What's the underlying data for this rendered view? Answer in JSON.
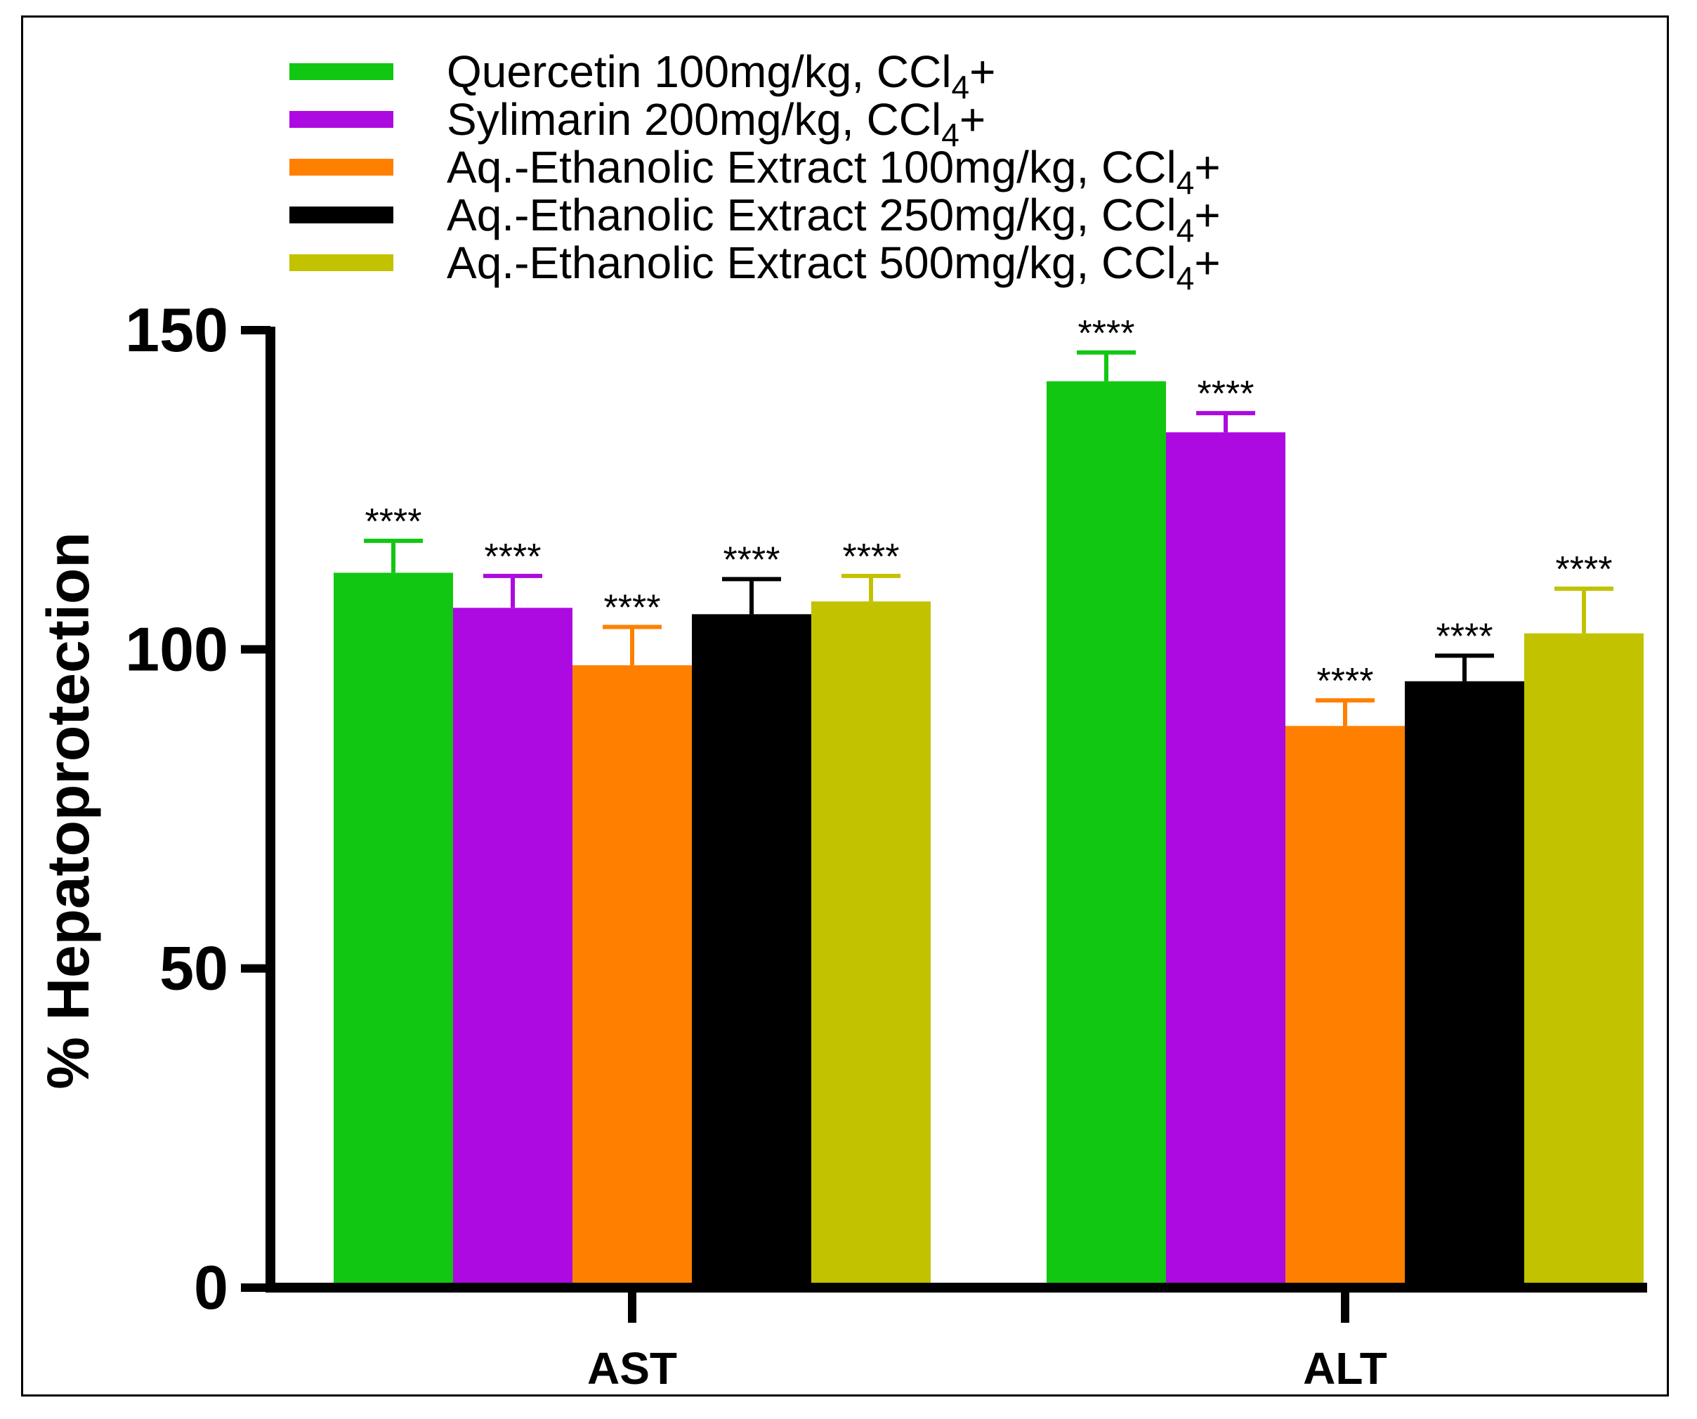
{
  "chart_data": {
    "type": "bar",
    "categories": [
      "AST",
      "ALT"
    ],
    "ylabel": "% Hepatoprotection",
    "ylim": [
      0,
      150
    ],
    "yticks": [
      0,
      50,
      100,
      150
    ],
    "legend_position": "top",
    "series": [
      {
        "name_main": "Quercetin 100mg/kg, CCl",
        "name_sub": "4",
        "name_end": "+",
        "color": "#12c712",
        "values": [
          112,
          142
        ],
        "errors": [
          5,
          4.5
        ],
        "sig": [
          "****",
          "****"
        ]
      },
      {
        "name_main": "Sylimarin 200mg/kg, CCl",
        "name_sub": "4",
        "name_end": "+",
        "color": "#ac0ae0",
        "values": [
          106.5,
          134
        ],
        "errors": [
          5,
          3
        ],
        "sig": [
          "****",
          "****"
        ]
      },
      {
        "name_main": "Aq.-Ethanolic Extract 100mg/kg, CCl",
        "name_sub": "4",
        "name_end": "+",
        "color": "#ff8000",
        "values": [
          97.5,
          88
        ],
        "errors": [
          6,
          4
        ],
        "sig": [
          "****",
          "****"
        ]
      },
      {
        "name_main": "Aq.-Ethanolic Extract 250mg/kg, CCl",
        "name_sub": "4",
        "name_end": "+",
        "color": "#000000",
        "values": [
          105.5,
          95
        ],
        "errors": [
          5.5,
          4
        ],
        "sig": [
          "****",
          "****"
        ]
      },
      {
        "name_main": "Aq.-Ethanolic Extract 500mg/kg, CCl",
        "name_sub": "4",
        "name_end": "+",
        "color": "#c2c200",
        "values": [
          107.5,
          102.5
        ],
        "errors": [
          4,
          7
        ],
        "sig": [
          "****",
          "****"
        ]
      }
    ]
  }
}
